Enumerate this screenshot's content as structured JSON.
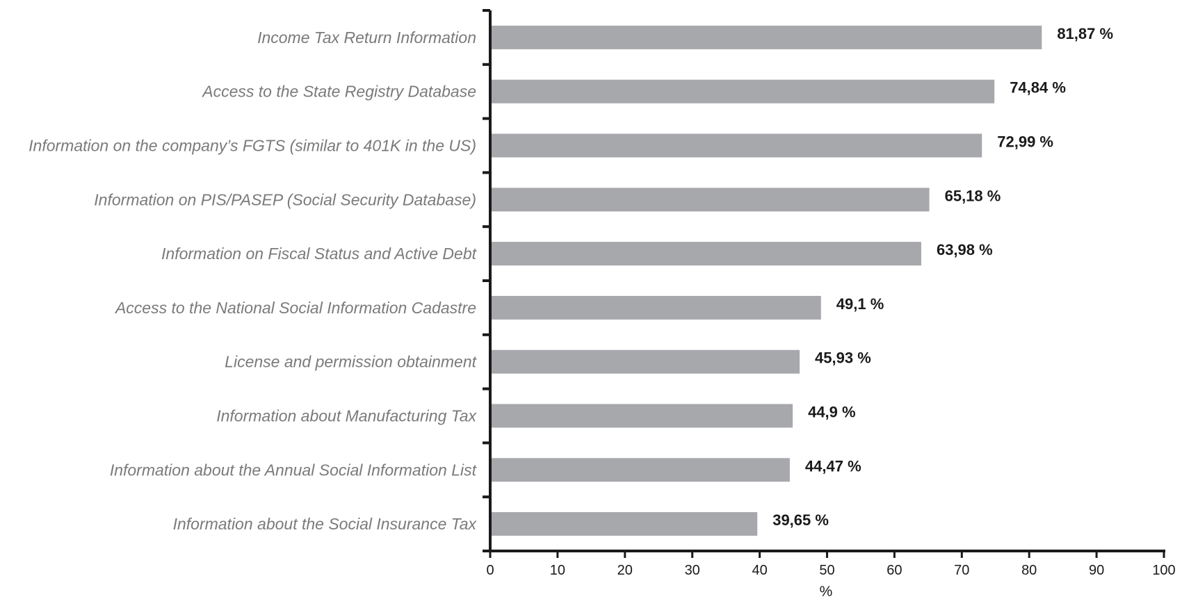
{
  "chart_data": {
    "type": "bar",
    "orientation": "horizontal",
    "categories": [
      "Income Tax Return Information",
      "Access to the State Registry Database",
      "Information on the company’s FGTS (similar to 401K in the US)",
      "Information on PIS/PASEP (Social Security Database)",
      "Information on  Fiscal Status and  Active Debt",
      "Access to the National Social Information Cadastre",
      "License and permission obtainment",
      "Information about Manufacturing Tax",
      "Information about the Annual Social Information List",
      "Information about the Social Insurance Tax"
    ],
    "values": [
      81.87,
      74.84,
      72.99,
      65.18,
      63.98,
      49.1,
      45.93,
      44.9,
      44.47,
      39.65
    ],
    "value_labels": [
      "81,87 %",
      "74,84 %",
      "72,99 %",
      "65,18 %",
      "63,98 %",
      "49,1 %",
      "45,93 %",
      "44,9 %",
      "44,47 %",
      "39,65 %"
    ],
    "title": "",
    "xlabel": "%",
    "ylabel": "",
    "xlim": [
      0,
      100
    ],
    "xticks": [
      0,
      10,
      20,
      30,
      40,
      50,
      60,
      70,
      80,
      90,
      100
    ],
    "grid": false,
    "legend": "none",
    "bar_color": "#a7a8ac",
    "axis_color": "#1a1a1a",
    "label_color": "#7a7a7a"
  }
}
